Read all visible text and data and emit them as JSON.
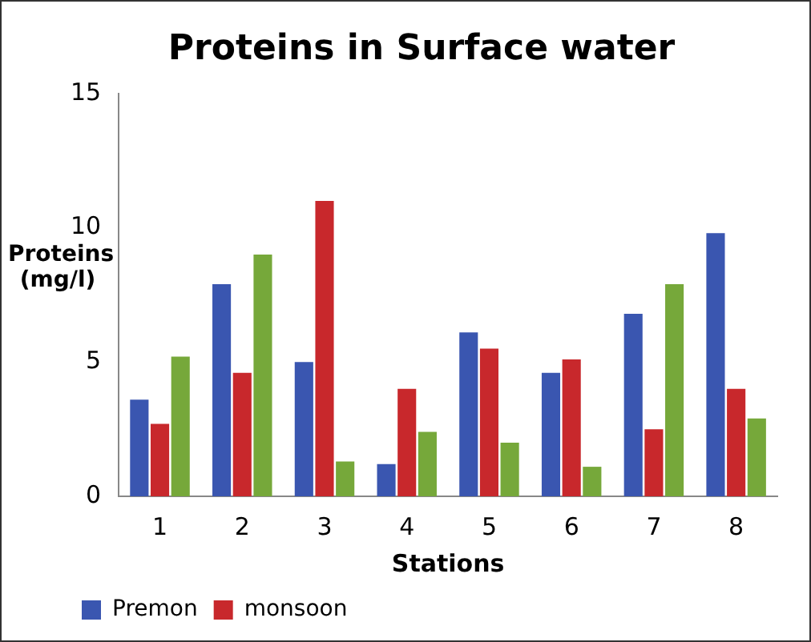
{
  "chart_data": {
    "type": "bar",
    "title": "Proteins in Surface water",
    "xlabel": "Stations",
    "ylabel": "Proteins (mg/l)",
    "categories": [
      "1",
      "2",
      "3",
      "4",
      "5",
      "6",
      "7",
      "8"
    ],
    "series": [
      {
        "name": "Premon",
        "color": "#3a56b0",
        "values": [
          3.6,
          7.9,
          5.0,
          1.2,
          6.1,
          4.6,
          6.8,
          9.8
        ]
      },
      {
        "name": "monsoon",
        "color": "#c8282c",
        "values": [
          2.7,
          4.6,
          11.0,
          4.0,
          5.5,
          5.1,
          2.5,
          4.0
        ]
      },
      {
        "color": "#76a83a",
        "values": [
          5.2,
          9.0,
          1.3,
          2.4,
          2.0,
          1.1,
          7.9,
          2.9
        ]
      }
    ],
    "ylim": [
      0,
      15
    ],
    "yticks": [
      0,
      5,
      10,
      15
    ],
    "grid": false,
    "legend": "bottom left"
  }
}
